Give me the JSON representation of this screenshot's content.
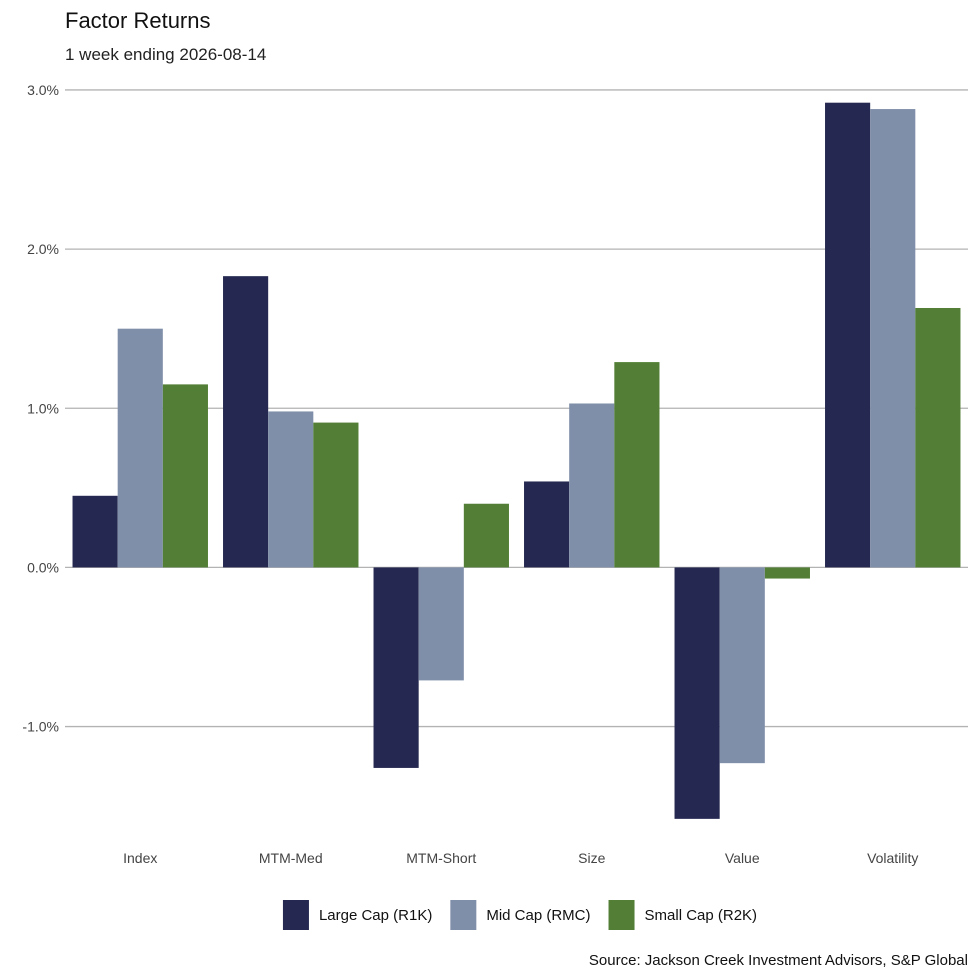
{
  "chart_data": {
    "type": "bar",
    "title": "Factor Returns",
    "subtitle": "1 week ending 2026-08-14",
    "caption": "Source: Jackson Creek Investment Advisors, S&P Global",
    "categories": [
      "Index",
      "MTM-Med",
      "MTM-Short",
      "Size",
      "Value",
      "Volatility"
    ],
    "series": [
      {
        "name": "Large Cap (R1K)",
        "color": "#252850",
        "values": [
          0.45,
          1.83,
          -1.26,
          0.54,
          -1.58,
          2.92
        ]
      },
      {
        "name": "Mid Cap (RMC)",
        "color": "#7f8fa9",
        "values": [
          1.5,
          0.98,
          -0.71,
          1.03,
          -1.23,
          2.88
        ]
      },
      {
        "name": "Small Cap (R2K)",
        "color": "#527f35",
        "values": [
          1.15,
          0.91,
          0.4,
          1.29,
          -0.07,
          1.63
        ]
      }
    ],
    "ylim": [
      -1.65,
      3.05
    ],
    "yticks": [
      -1.0,
      0.0,
      1.0,
      2.0,
      3.0
    ],
    "ytick_labels": [
      "-1.0%",
      "0.0%",
      "1.0%",
      "2.0%",
      "3.0%"
    ],
    "xlabel": "",
    "ylabel": "",
    "grid": true,
    "legend_position": "bottom"
  }
}
